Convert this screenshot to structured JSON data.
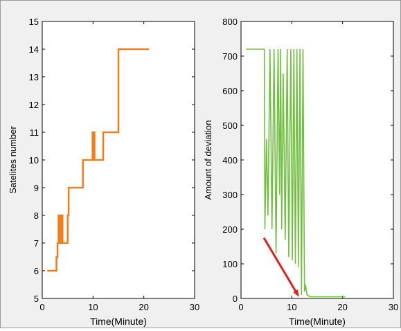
{
  "chart_data": [
    {
      "type": "line",
      "title": "",
      "xlabel": "Time(Minute)",
      "ylabel": "Satelites number",
      "xlim": [
        0,
        30
      ],
      "ylim": [
        5,
        15
      ],
      "xticks": [
        "0",
        "10",
        "20",
        "30"
      ],
      "yticks": [
        "5",
        "6",
        "7",
        "8",
        "9",
        "10",
        "11",
        "12",
        "13",
        "14",
        "15"
      ],
      "grid": false,
      "series": [
        {
          "color": "#f07f1a",
          "x": [
            1.0,
            2.8,
            2.8,
            3.0,
            3.0,
            3.2,
            3.2,
            3.5,
            3.5,
            3.7,
            3.7,
            4.0,
            4.0,
            5.0,
            5.0,
            5.2,
            5.2,
            8.0,
            8.0,
            9.9,
            9.9,
            10.0,
            10.0,
            10.1,
            10.1,
            10.3,
            10.3,
            12.0,
            12.0,
            15.0,
            15.0,
            21.0
          ],
          "y": [
            6,
            6,
            6.5,
            6.5,
            7,
            7,
            8,
            8,
            7,
            7,
            8,
            8,
            7,
            7,
            8,
            8,
            9,
            9,
            10,
            10,
            11,
            11,
            10,
            10,
            11,
            11,
            10,
            10,
            11,
            11,
            14,
            14
          ]
        }
      ]
    },
    {
      "type": "line",
      "title": "",
      "xlabel": "Time(Minute)",
      "ylabel": "Amount of deviation",
      "xlim": [
        0,
        30
      ],
      "ylim": [
        0,
        800
      ],
      "xticks": [
        "0",
        "10",
        "20",
        "30"
      ],
      "yticks": [
        "0",
        "100",
        "200",
        "300",
        "400",
        "500",
        "600",
        "700",
        "800"
      ],
      "grid": false,
      "series": [
        {
          "color": "#70c040",
          "x": [
            1.0,
            4.6,
            4.7,
            5.0,
            5.3,
            5.7,
            6.1,
            6.5,
            6.9,
            7.3,
            7.6,
            7.8,
            8.0,
            8.3,
            8.7,
            9.1,
            9.4,
            9.8,
            10.1,
            10.4,
            10.7,
            11.0,
            11.3,
            11.6,
            11.9,
            12.2,
            12.5,
            12.7,
            13.0,
            13.6,
            20.5
          ],
          "y": [
            720,
            720,
            200,
            460,
            240,
            720,
            200,
            720,
            130,
            720,
            300,
            720,
            200,
            650,
            170,
            720,
            120,
            720,
            110,
            720,
            100,
            720,
            90,
            720,
            10,
            720,
            20,
            40,
            10,
            5,
            5
          ]
        }
      ],
      "annotations": [
        {
          "type": "arrow",
          "color": "#e02020",
          "from": [
            4.5,
            175
          ],
          "to": [
            11.2,
            10
          ]
        }
      ]
    }
  ]
}
